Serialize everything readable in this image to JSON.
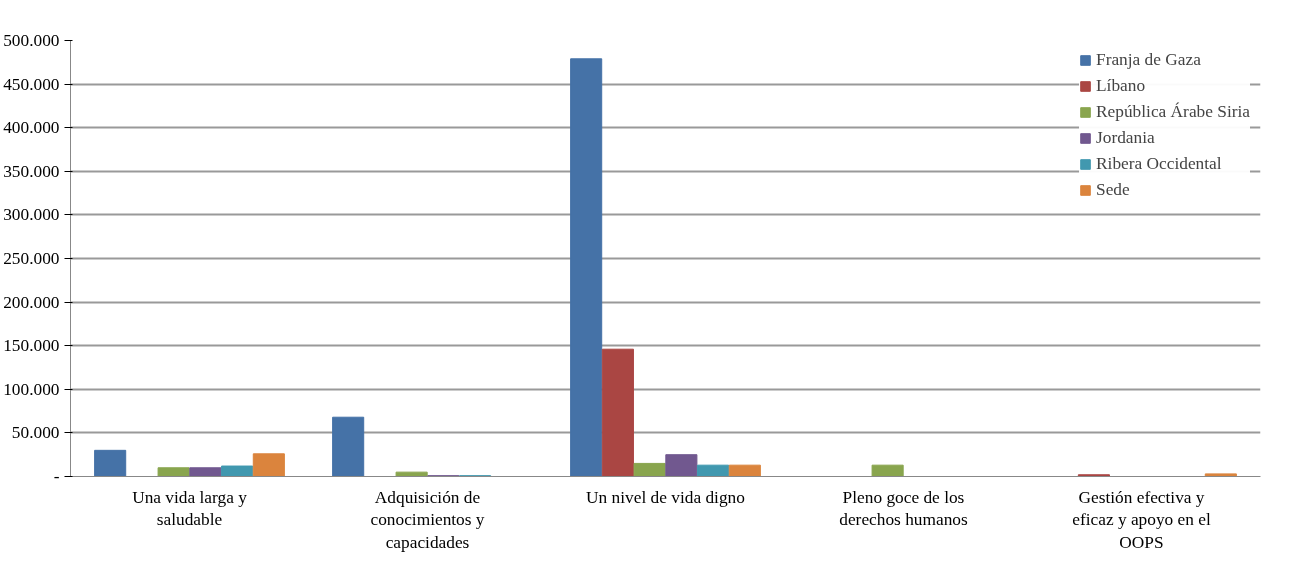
{
  "chart_data": {
    "type": "bar",
    "categories": [
      "Una vida larga y saludable",
      "Adquisición de conocimientos y capacidades",
      "Un nivel de vida digno",
      "Pleno goce de los derechos humanos",
      "Gestión efectiva y eficaz y apoyo en el OOPS"
    ],
    "series": [
      {
        "name": "Franja de Gaza",
        "color": "#4572a7",
        "values": [
          30000,
          68000,
          479000,
          0,
          0
        ]
      },
      {
        "name": "Líbano",
        "color": "#aa4643",
        "values": [
          0,
          0,
          146000,
          0,
          2000
        ]
      },
      {
        "name": "República Árabe Siria",
        "color": "#89a54e",
        "values": [
          10000,
          5000,
          15000,
          13000,
          0
        ]
      },
      {
        "name": "Jordania",
        "color": "#71588f",
        "values": [
          10000,
          1000,
          25000,
          0,
          0
        ]
      },
      {
        "name": "Ribera Occidental",
        "color": "#4198af",
        "values": [
          12000,
          1000,
          13000,
          0,
          0
        ]
      },
      {
        "name": "Sede",
        "color": "#db843d",
        "values": [
          26000,
          0,
          13000,
          0,
          3000
        ]
      }
    ],
    "ylim": [
      0,
      500000
    ],
    "yticks": [
      {
        "value": 0,
        "label": "-"
      },
      {
        "value": 50000,
        "label": "50.000"
      },
      {
        "value": 100000,
        "label": "100.000"
      },
      {
        "value": 150000,
        "label": "150.000"
      },
      {
        "value": 200000,
        "label": "200.000"
      },
      {
        "value": 250000,
        "label": "250.000"
      },
      {
        "value": 300000,
        "label": "300.000"
      },
      {
        "value": 350000,
        "label": "350.000"
      },
      {
        "value": 400000,
        "label": "400.000"
      },
      {
        "value": 450000,
        "label": "450.000"
      },
      {
        "value": 500000,
        "label": "500.000"
      }
    ],
    "grid": "y",
    "legend": "top right"
  }
}
